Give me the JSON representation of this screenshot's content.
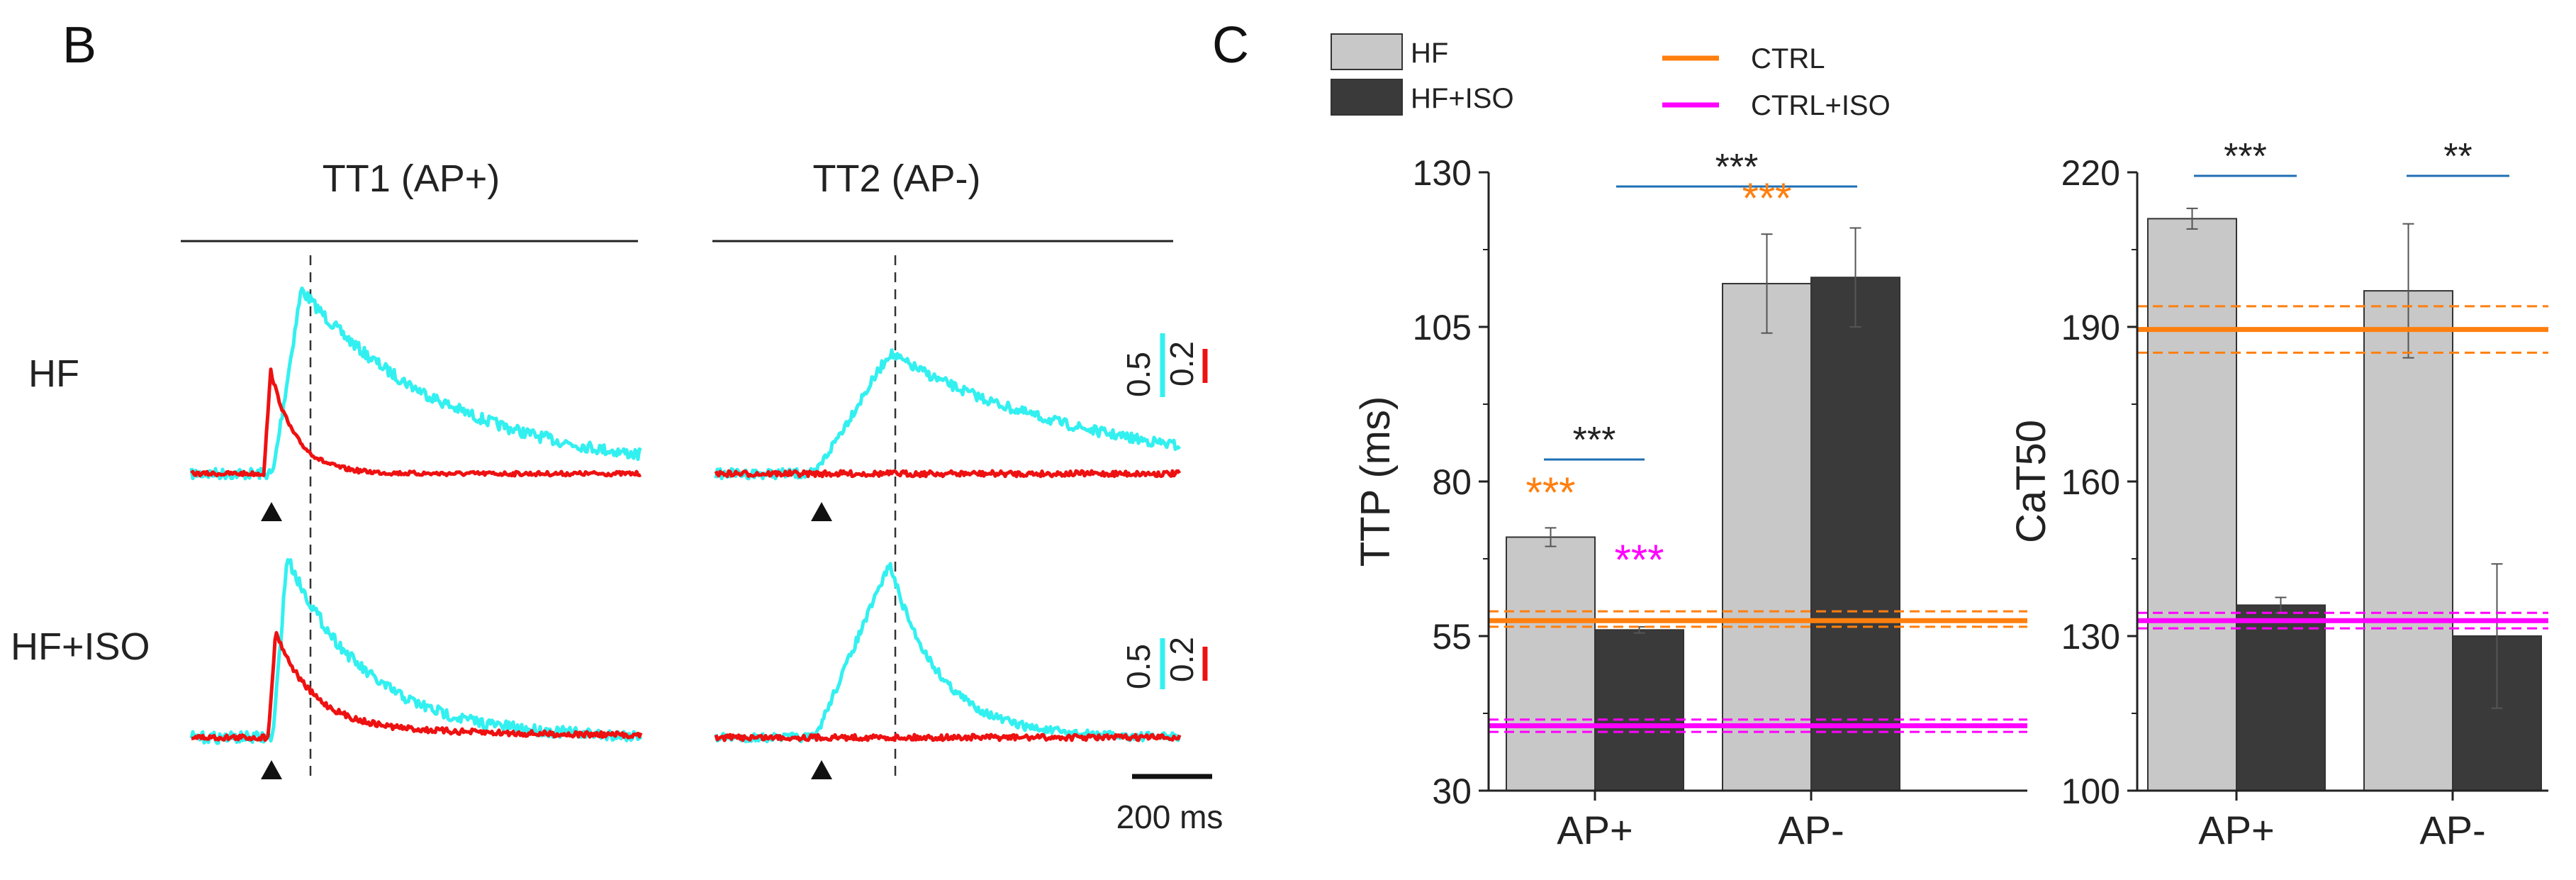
{
  "panels": {
    "left_letter": "B",
    "right_letter": "C"
  },
  "traces": {
    "group_tt1": "TT1 (AP+)",
    "group_tt2": "TT2 (AP-)",
    "row_hf": "HF",
    "row_hfiso": "HF+ISO",
    "scale_cyan_hf": "0.5",
    "scale_red_hf": "0.2",
    "scale_cyan_iso": "0.5",
    "scale_red_iso": "0.2",
    "time_scale": "200 ms",
    "colors": {
      "cyan": "#33f0f0",
      "red": "#ee1111"
    }
  },
  "legend": {
    "hf": "HF",
    "hfiso": "HF+ISO",
    "ctrl": "CTRL",
    "ctrliso": "CTRL+ISO"
  },
  "colors": {
    "hf": "#c8c8c8",
    "hfiso": "#3a3a3a",
    "ctrl": "#ff7f0e",
    "ctrliso": "#ff00ff",
    "sig": "#1f6fb4"
  },
  "chart_data": [
    {
      "type": "bar",
      "title": "",
      "xlabel": "",
      "ylabel": "TTP (ms)",
      "categories": [
        "AP+",
        "AP-"
      ],
      "ylim": [
        30,
        130
      ],
      "yticks": [
        30,
        55,
        80,
        105,
        130
      ],
      "series": [
        {
          "name": "HF",
          "values": [
            71,
            112
          ],
          "errors": [
            1.5,
            8
          ]
        },
        {
          "name": "HF+ISO",
          "values": [
            56,
            113
          ],
          "errors": [
            0.5,
            8
          ]
        }
      ],
      "reference_lines": [
        {
          "name": "CTRL",
          "value": 57.5,
          "band": [
            56.5,
            59
          ]
        },
        {
          "name": "CTRL+ISO",
          "value": 40.5,
          "band": [
            39.5,
            41.5
          ]
        }
      ],
      "annotations": [
        {
          "text": "***",
          "color": "sig",
          "spans": "AP+ HF vs HF+ISO"
        },
        {
          "text": "***",
          "color": "sig",
          "spans": "AP+ vs AP-"
        },
        {
          "text": "***",
          "color": "ctrl",
          "over": "AP+ HF"
        },
        {
          "text": "***",
          "color": "ctrliso",
          "over": "AP+ HF+ISO"
        },
        {
          "text": "***",
          "color": "ctrl",
          "over": "AP- HF"
        }
      ]
    },
    {
      "type": "bar",
      "title": "",
      "xlabel": "",
      "ylabel": "CaT50",
      "categories": [
        "AP+",
        "AP-"
      ],
      "ylim": [
        100,
        220
      ],
      "yticks": [
        100,
        130,
        160,
        190,
        220
      ],
      "series": [
        {
          "name": "HF",
          "values": [
            211,
            197
          ],
          "errors": [
            2,
            13
          ]
        },
        {
          "name": "HF+ISO",
          "values": [
            136,
            130
          ],
          "errors": [
            1.5,
            14
          ]
        }
      ],
      "reference_lines": [
        {
          "name": "CTRL",
          "value": 189.5,
          "band": [
            185,
            194
          ]
        },
        {
          "name": "CTRL+ISO",
          "value": 133,
          "band": [
            131.5,
            134.5
          ]
        }
      ],
      "annotations": [
        {
          "text": "***",
          "color": "sig",
          "spans": "AP+ HF vs HF+ISO"
        },
        {
          "text": "**",
          "color": "sig",
          "spans": "AP- HF vs HF+ISO"
        }
      ]
    }
  ]
}
